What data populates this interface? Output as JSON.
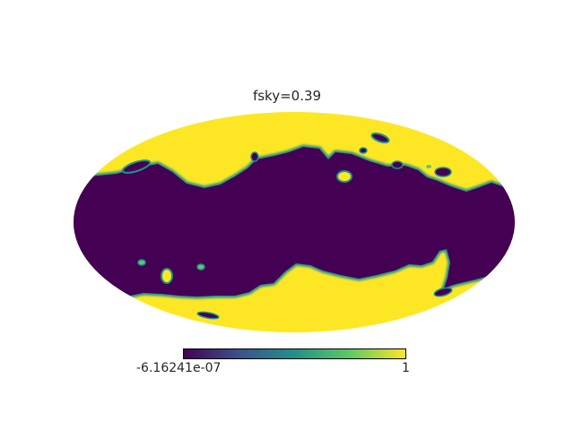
{
  "map": {
    "title": "fsky=0.39",
    "projection": "mollweide",
    "fsky": 0.39,
    "colormap": "viridis",
    "colors": {
      "masked_value": "#440154",
      "unmasked_value": "#fde725",
      "edge_mid": "#21918c"
    }
  },
  "colorbar": {
    "min_label": "-6.16241e-07",
    "max_label": "1",
    "stops": [
      "#440154",
      "#3b528b",
      "#21918c",
      "#5ec962",
      "#fde725"
    ]
  }
}
